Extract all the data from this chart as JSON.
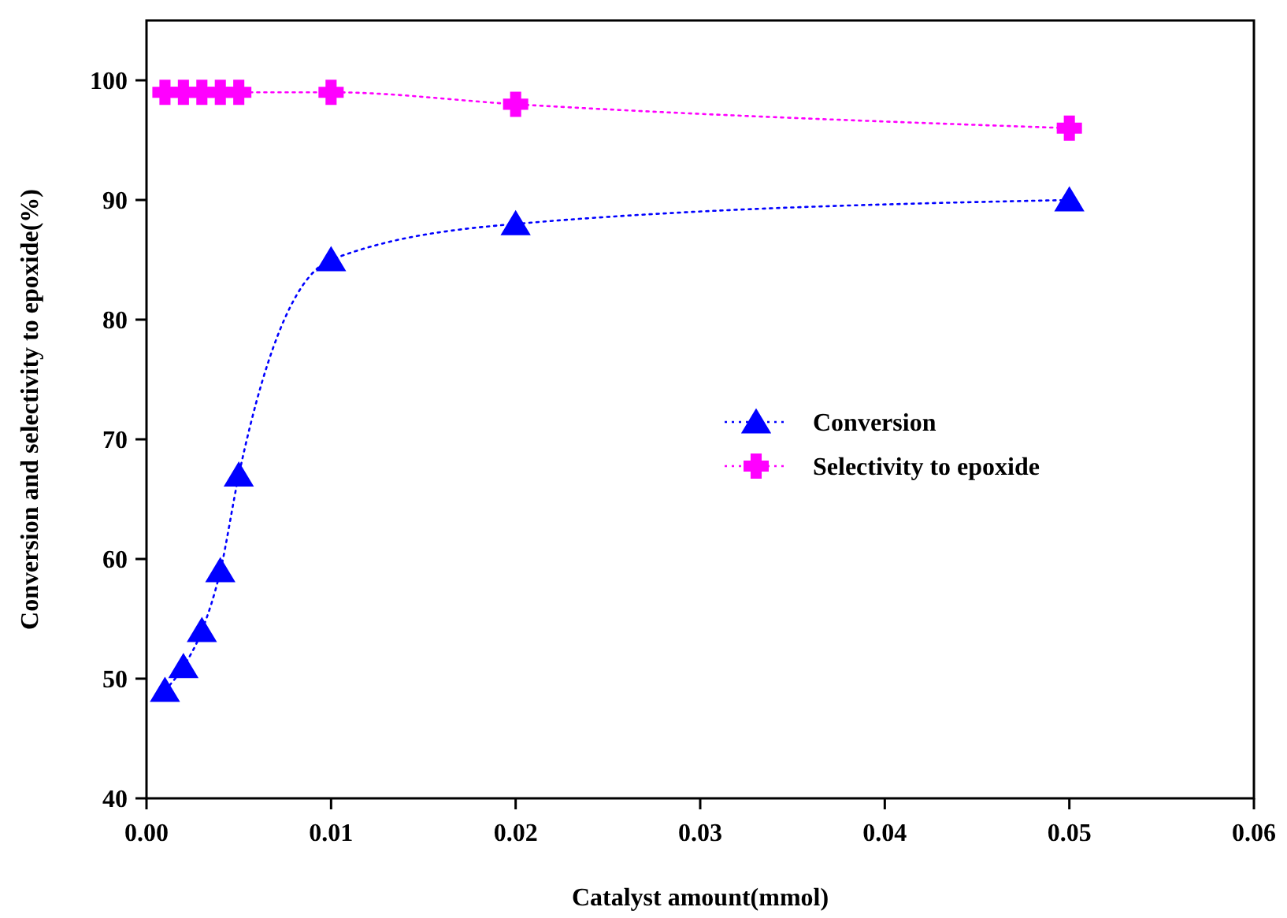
{
  "chart_data": {
    "type": "line",
    "xlabel": "Catalyst amount(mmol)",
    "ylabel": "Conversion and selectivity to epoxide(%)",
    "x": [
      0.001,
      0.002,
      0.003,
      0.004,
      0.005,
      0.01,
      0.02,
      0.05
    ],
    "series": [
      {
        "name": "Conversion",
        "color": "#0000ff",
        "marker": "triangle",
        "values": [
          49,
          51,
          54,
          59,
          67,
          85,
          88,
          90
        ]
      },
      {
        "name": "Selectivity to epoxide",
        "color": "#ff00ff",
        "marker": "cross",
        "values": [
          99,
          99,
          99,
          99,
          99,
          99,
          98,
          96
        ]
      }
    ],
    "xlim": [
      0,
      0.06
    ],
    "xticks": [
      {
        "value": 0,
        "label": "0.00"
      },
      {
        "value": 0.01,
        "label": "0.01"
      },
      {
        "value": 0.02,
        "label": "0.02"
      },
      {
        "value": 0.03,
        "label": "0.03"
      },
      {
        "value": 0.04,
        "label": "0.04"
      },
      {
        "value": 0.05,
        "label": "0.05"
      },
      {
        "value": 0.06,
        "label": "0.06"
      }
    ],
    "ylim": [
      40,
      105
    ],
    "yticks": [
      40,
      50,
      60,
      70,
      80,
      90,
      100
    ],
    "grid": false,
    "legend": "right",
    "line_style": "dotted"
  }
}
